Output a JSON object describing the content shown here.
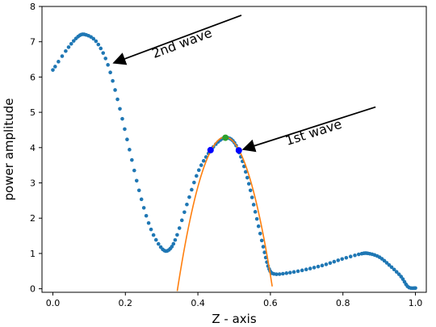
{
  "chart_data": {
    "type": "scatter",
    "xlabel": "Z - axis",
    "ylabel": "power amplitude",
    "xlim": [
      -0.03,
      1.03
    ],
    "ylim": [
      -0.1,
      8
    ],
    "xticks": [
      "0.0",
      "0.2",
      "0.4",
      "0.6",
      "0.8",
      "1.0"
    ],
    "xtick_values": [
      0.0,
      0.2,
      0.4,
      0.6,
      0.8,
      1.0
    ],
    "yticks": [
      "0",
      "1",
      "2",
      "3",
      "4",
      "5",
      "6",
      "7",
      "8"
    ],
    "ytick_values": [
      0,
      1,
      2,
      3,
      4,
      5,
      6,
      7,
      8
    ],
    "grid": false,
    "colors": {
      "series": "#1f77b4",
      "fit": "#ff7f0e",
      "peak": "#2ca02c",
      "markers": "#0000ff"
    },
    "curve_control_points": [
      [
        0.0,
        6.2
      ],
      [
        0.04,
        6.8
      ],
      [
        0.07,
        7.15
      ],
      [
        0.09,
        7.2
      ],
      [
        0.12,
        7.0
      ],
      [
        0.15,
        6.4
      ],
      [
        0.18,
        5.3
      ],
      [
        0.21,
        4.0
      ],
      [
        0.24,
        2.7
      ],
      [
        0.27,
        1.7
      ],
      [
        0.3,
        1.15
      ],
      [
        0.32,
        1.1
      ],
      [
        0.34,
        1.45
      ],
      [
        0.37,
        2.4
      ],
      [
        0.4,
        3.3
      ],
      [
        0.43,
        3.85
      ],
      [
        0.46,
        4.2
      ],
      [
        0.48,
        4.28
      ],
      [
        0.5,
        4.15
      ],
      [
        0.52,
        3.7
      ],
      [
        0.54,
        3.0
      ],
      [
        0.56,
        2.1
      ],
      [
        0.58,
        1.2
      ],
      [
        0.595,
        0.6
      ],
      [
        0.61,
        0.42
      ],
      [
        0.65,
        0.45
      ],
      [
        0.7,
        0.55
      ],
      [
        0.75,
        0.68
      ],
      [
        0.8,
        0.85
      ],
      [
        0.85,
        0.99
      ],
      [
        0.87,
        1.0
      ],
      [
        0.9,
        0.9
      ],
      [
        0.93,
        0.65
      ],
      [
        0.96,
        0.35
      ],
      [
        0.98,
        0.05
      ],
      [
        1.0,
        0.02
      ]
    ],
    "point_count": 160,
    "fit_parabola": {
      "vertex_x": 0.475,
      "vertex_y": 4.3,
      "root_left": 0.343,
      "root_right": 0.605
    },
    "fit_x_range": [
      0.343,
      0.605
    ],
    "peak_point": [
      0.476,
      4.28
    ],
    "marker_points": [
      [
        0.435,
        3.93
      ],
      [
        0.513,
        3.92
      ]
    ],
    "annotations": [
      {
        "text": "2nd wave",
        "xy": [
          0.168,
          6.4
        ],
        "xytext": [
          0.52,
          7.75
        ]
      },
      {
        "text": "1st wave",
        "xy": [
          0.525,
          3.95
        ],
        "xytext": [
          0.89,
          5.15
        ]
      }
    ]
  }
}
